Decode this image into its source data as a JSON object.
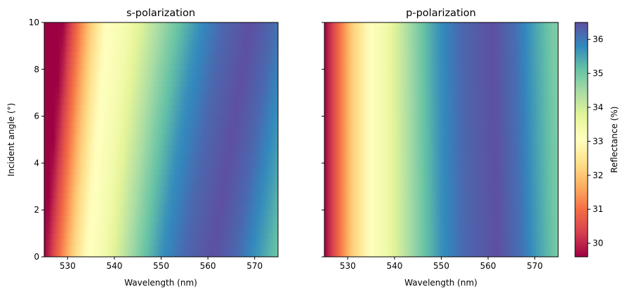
{
  "chart_data": {
    "type": "heatmap",
    "colormap": "Spectral",
    "colorbar": {
      "label": "Reflectance (%)",
      "range": [
        29.6,
        36.5
      ],
      "ticks": [
        30,
        31,
        32,
        33,
        34,
        35,
        36
      ]
    },
    "panels": [
      {
        "title": "s-polarization",
        "xlabel": "Wavelength (nm)",
        "ylabel": "Incident angle (°)",
        "xlim": [
          525,
          575
        ],
        "ylim": [
          0,
          10
        ],
        "xticks": [
          530,
          540,
          550,
          560,
          570
        ],
        "yticks": [
          0,
          2,
          4,
          6,
          8,
          10
        ],
        "peak_wavelength_at_0deg": 561,
        "peak_wavelength_at_10deg": 569,
        "valley_wavelength_at_0deg": 534,
        "valley_wavelength_at_10deg": 538,
        "reflectance_profile_at_0deg": [
          {
            "wavelength": 525,
            "reflectance": 29.6
          },
          {
            "wavelength": 528,
            "reflectance": 30.9
          },
          {
            "wavelength": 531,
            "reflectance": 32.1
          },
          {
            "wavelength": 534,
            "reflectance": 33.0
          },
          {
            "wavelength": 538,
            "reflectance": 33.4
          },
          {
            "wavelength": 542,
            "reflectance": 34.2
          },
          {
            "wavelength": 546,
            "reflectance": 35.0
          },
          {
            "wavelength": 550,
            "reflectance": 35.7
          },
          {
            "wavelength": 555,
            "reflectance": 36.2
          },
          {
            "wavelength": 561,
            "reflectance": 36.5
          },
          {
            "wavelength": 566,
            "reflectance": 36.2
          },
          {
            "wavelength": 571,
            "reflectance": 35.6
          },
          {
            "wavelength": 575,
            "reflectance": 35.0
          }
        ]
      },
      {
        "title": "p-polarization",
        "xlabel": "Wavelength (nm)",
        "ylabel": "",
        "xlim": [
          525,
          575
        ],
        "ylim": [
          0,
          10
        ],
        "xticks": [
          530,
          540,
          550,
          560,
          570
        ],
        "yticks": [
          0,
          2,
          4,
          6,
          8,
          10
        ],
        "peak_wavelength_at_0deg": 562,
        "peak_wavelength_at_10deg": 561,
        "valley_wavelength_at_0deg": 535,
        "valley_wavelength_at_10deg": 535,
        "reflectance_profile_at_0deg": [
          {
            "wavelength": 525,
            "reflectance": 29.6
          },
          {
            "wavelength": 528,
            "reflectance": 30.9
          },
          {
            "wavelength": 531,
            "reflectance": 32.1
          },
          {
            "wavelength": 535,
            "reflectance": 33.1
          },
          {
            "wavelength": 538,
            "reflectance": 33.4
          },
          {
            "wavelength": 542,
            "reflectance": 34.2
          },
          {
            "wavelength": 546,
            "reflectance": 35.0
          },
          {
            "wavelength": 550,
            "reflectance": 35.7
          },
          {
            "wavelength": 555,
            "reflectance": 36.2
          },
          {
            "wavelength": 562,
            "reflectance": 36.5
          },
          {
            "wavelength": 567,
            "reflectance": 36.1
          },
          {
            "wavelength": 571,
            "reflectance": 35.5
          },
          {
            "wavelength": 575,
            "reflectance": 34.9
          }
        ]
      }
    ]
  }
}
